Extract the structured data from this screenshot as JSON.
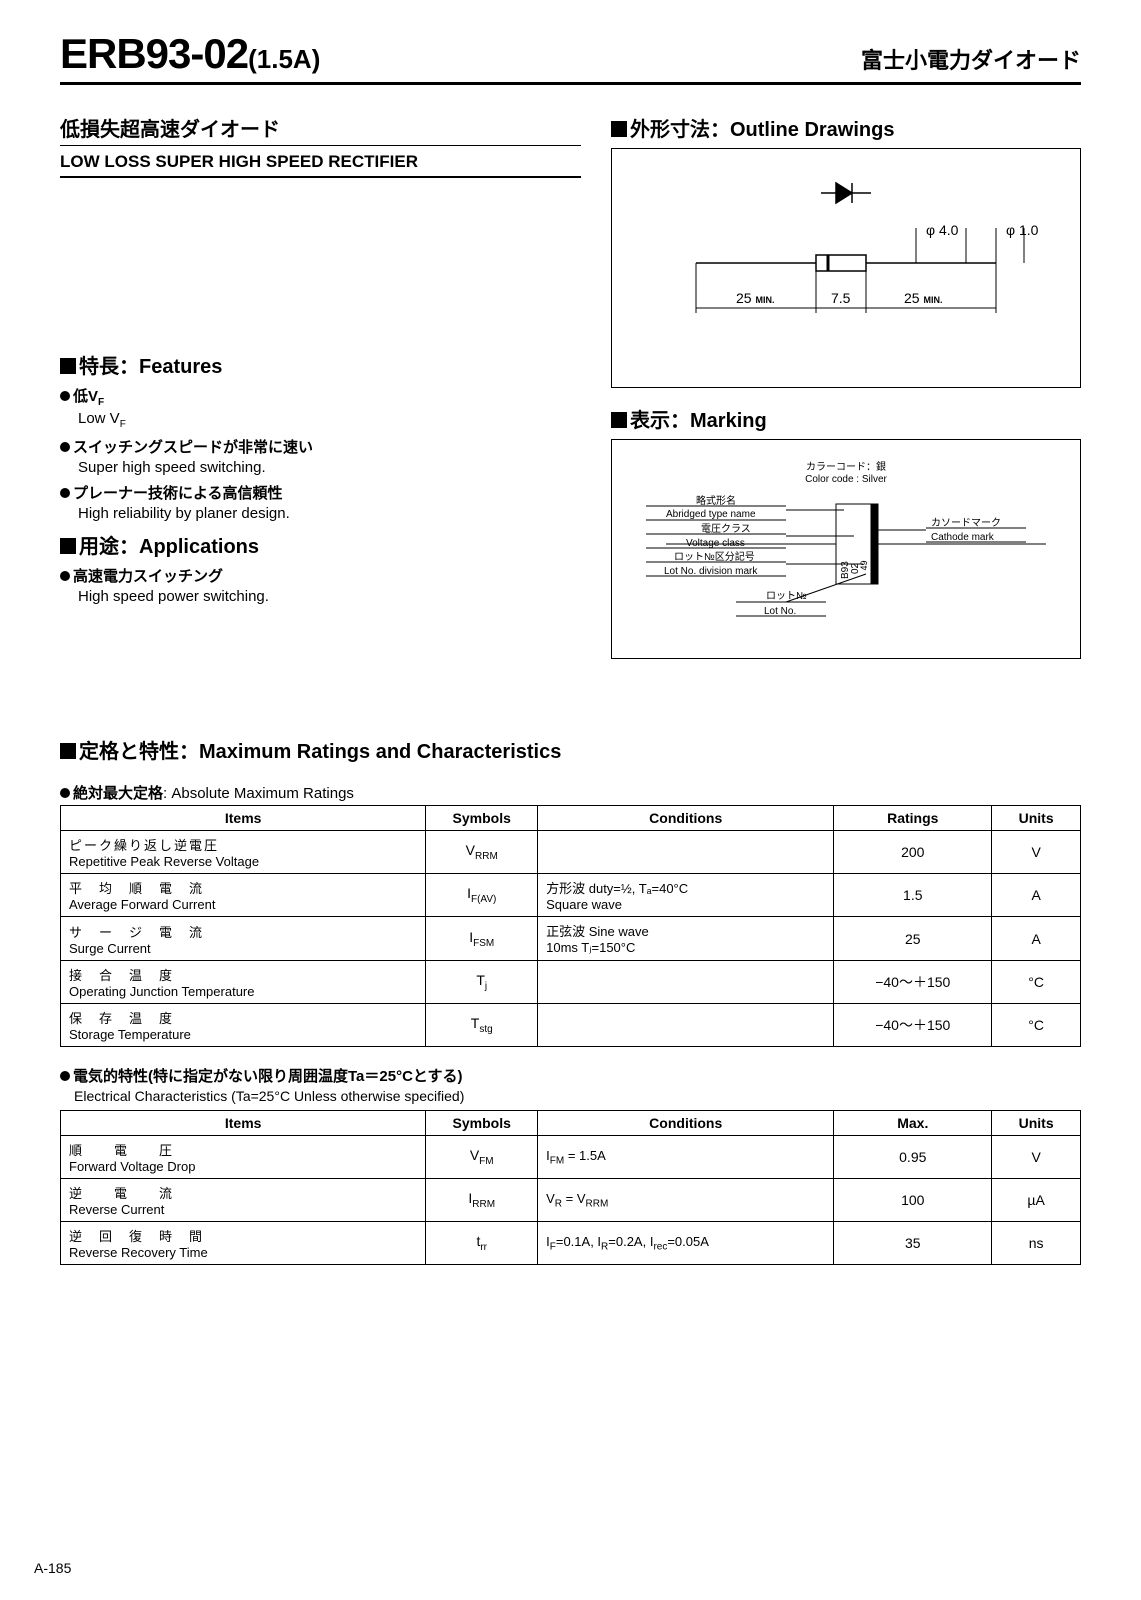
{
  "header": {
    "part": "ERB93-02",
    "suffix": "(1.5A)",
    "company": "富士小電力ダイオード"
  },
  "left": {
    "title_jp": "低損失超高速ダイオード",
    "title_en": "LOW LOSS SUPER HIGH SPEED RECTIFIER",
    "features_heading": "■特長：Features",
    "features": [
      {
        "jp": "低V",
        "jp_sub": "F",
        "en": "Low V",
        "en_sub": "F"
      },
      {
        "jp": "スイッチングスピードが非常に速い",
        "en": "Super high speed switching."
      },
      {
        "jp": "プレーナー技術による高信頼性",
        "en": "High reliability by planer design."
      }
    ],
    "apps_heading": "■用途：Applications",
    "apps": [
      {
        "jp": "高速電力スイッチング",
        "en": "High speed power switching."
      }
    ]
  },
  "right": {
    "outline_heading": "■外形寸法：Outline Drawings",
    "outline": {
      "d_body": "φ 4.0",
      "d_lead": "φ 1.0",
      "lead_len": "25",
      "min": "MIN.",
      "body_len": "7.5"
    },
    "marking_heading": "■表示：Marking",
    "marking": {
      "color_jp": "カラーコード：銀",
      "color_en": "Color code : Silver",
      "l1_jp": "略式形名",
      "l1_en": "Abridged type name",
      "l2_jp": "電圧クラス",
      "l2_en": "Voltage class",
      "l3_jp": "ロット№区分記号",
      "l3_en": "Lot No. division mark",
      "l4_jp": "ロット№",
      "l4_en": "Lot No.",
      "r1_jp": "カソードマーク",
      "r1_en": "Cathode mark",
      "body_text1": "B93",
      "body_text2": "02",
      "body_text3": "· 49"
    }
  },
  "ratings": {
    "heading": "■定格と特性：Maximum Ratings and Characteristics",
    "abs_note_jp": "絶対最大定格",
    "abs_note_en": ": Absolute Maximum Ratings",
    "table1": {
      "headers": [
        "Items",
        "Symbols",
        "Conditions",
        "Ratings",
        "Units"
      ],
      "rows": [
        {
          "jp": "ピーク繰り返し逆電圧",
          "en": "Repetitive Peak Reverse Voltage",
          "sym": "V",
          "sub": "RRM",
          "cond": "",
          "rat": "200",
          "unit": "V"
        },
        {
          "jp": "平　均　順　電　流",
          "en": "Average Forward Current",
          "sym": "I",
          "sub": "F(AV)",
          "cond": "方形波 duty=½, Tₐ=40°C\nSquare wave",
          "rat": "1.5",
          "unit": "A"
        },
        {
          "jp": "サ　ー　ジ　電　流",
          "en": "Surge Current",
          "sym": "I",
          "sub": "FSM",
          "cond": "正弦波 Sine wave\n10ms  Tⱼ=150°C",
          "rat": "25",
          "unit": "A"
        },
        {
          "jp": "接　合　温　度",
          "en": "Operating Junction Temperature",
          "sym": "T",
          "sub": "j",
          "cond": "",
          "rat": "−40～＋150",
          "unit": "°C"
        },
        {
          "jp": "保　存　温　度",
          "en": "Storage Temperature",
          "sym": "T",
          "sub": "stg",
          "cond": "",
          "rat": "−40～＋150",
          "unit": "°C"
        }
      ]
    },
    "elec_note_jp": "電気的特性(特に指定がない限り周囲温度Ta＝25°Cとする)",
    "elec_note_en": "Electrical Characteristics (Ta=25°C Unless otherwise specified)",
    "table2": {
      "headers": [
        "Items",
        "Symbols",
        "Conditions",
        "Max.",
        "Units"
      ],
      "rows": [
        {
          "jp": "順　　電　　圧",
          "en": "Forward Voltage Drop",
          "sym": "V",
          "sub": "FM",
          "cond": "I_FM = 1.5A",
          "rat": "0.95",
          "unit": "V"
        },
        {
          "jp": "逆　　電　　流",
          "en": "Reverse Current",
          "sym": "I",
          "sub": "RRM",
          "cond": "V_R = V_RRM",
          "rat": "100",
          "unit": "µA"
        },
        {
          "jp": "逆　回　復　時　間",
          "en": "Reverse Recovery Time",
          "sym": "t",
          "sub": "rr",
          "cond": "I_F=0.1A, I_R=0.2A, I_rec=0.05A",
          "rat": "35",
          "unit": "ns"
        }
      ]
    }
  },
  "page": "A-185"
}
